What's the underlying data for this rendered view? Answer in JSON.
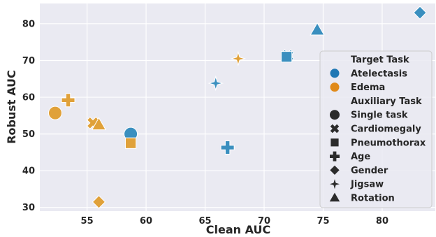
{
  "chart_data": {
    "type": "scatter",
    "xlabel": "Clean AUC",
    "ylabel": "Robust AUC",
    "xlim": [
      51.0,
      84.5
    ],
    "ylim": [
      29.0,
      85.5
    ],
    "xticks": [
      55,
      60,
      65,
      70,
      75,
      80
    ],
    "yticks": [
      30,
      40,
      50,
      60,
      70,
      80
    ],
    "grid": true,
    "legend_placement": "right",
    "colors": {
      "Atelectasis": "#3a8fbf",
      "Edema": "#e0a13a",
      "background": "#eaeaf2",
      "grid": "#ffffff"
    },
    "legend": {
      "hue_title": "Target Task",
      "hue_entries": [
        {
          "label": "Atelectasis",
          "color": "#1f77b4"
        },
        {
          "label": "Edema",
          "color": "#e08a1a"
        }
      ],
      "style_title": "Auxiliary Task",
      "style_entries": [
        {
          "label": "Single task",
          "marker": "circle"
        },
        {
          "label": "Cardiomegaly",
          "marker": "x"
        },
        {
          "label": "Pneumothorax",
          "marker": "square"
        },
        {
          "label": "Age",
          "marker": "plus"
        },
        {
          "label": "Gender",
          "marker": "diamond"
        },
        {
          "label": "Jigsaw",
          "marker": "star4"
        },
        {
          "label": "Rotation",
          "marker": "triangle"
        }
      ]
    },
    "points": [
      {
        "x": 58.7,
        "y": 50.0,
        "target": "Atelectasis",
        "aux": "Single task"
      },
      {
        "x": 72.0,
        "y": 71.3,
        "target": "Atelectasis",
        "aux": "Cardiomegaly"
      },
      {
        "x": 71.9,
        "y": 71.0,
        "target": "Atelectasis",
        "aux": "Pneumothorax"
      },
      {
        "x": 66.9,
        "y": 46.3,
        "target": "Atelectasis",
        "aux": "Age"
      },
      {
        "x": 83.2,
        "y": 83.0,
        "target": "Atelectasis",
        "aux": "Gender"
      },
      {
        "x": 65.9,
        "y": 63.8,
        "target": "Atelectasis",
        "aux": "Jigsaw"
      },
      {
        "x": 74.5,
        "y": 78.3,
        "target": "Atelectasis",
        "aux": "Rotation"
      },
      {
        "x": 52.3,
        "y": 55.7,
        "target": "Edema",
        "aux": "Single task"
      },
      {
        "x": 55.5,
        "y": 53.0,
        "target": "Edema",
        "aux": "Cardiomegaly"
      },
      {
        "x": 58.7,
        "y": 47.5,
        "target": "Edema",
        "aux": "Pneumothorax"
      },
      {
        "x": 53.4,
        "y": 59.2,
        "target": "Edema",
        "aux": "Age"
      },
      {
        "x": 56.0,
        "y": 31.5,
        "target": "Edema",
        "aux": "Gender"
      },
      {
        "x": 67.8,
        "y": 70.5,
        "target": "Edema",
        "aux": "Jigsaw"
      },
      {
        "x": 56.0,
        "y": 52.5,
        "target": "Edema",
        "aux": "Rotation"
      }
    ]
  }
}
